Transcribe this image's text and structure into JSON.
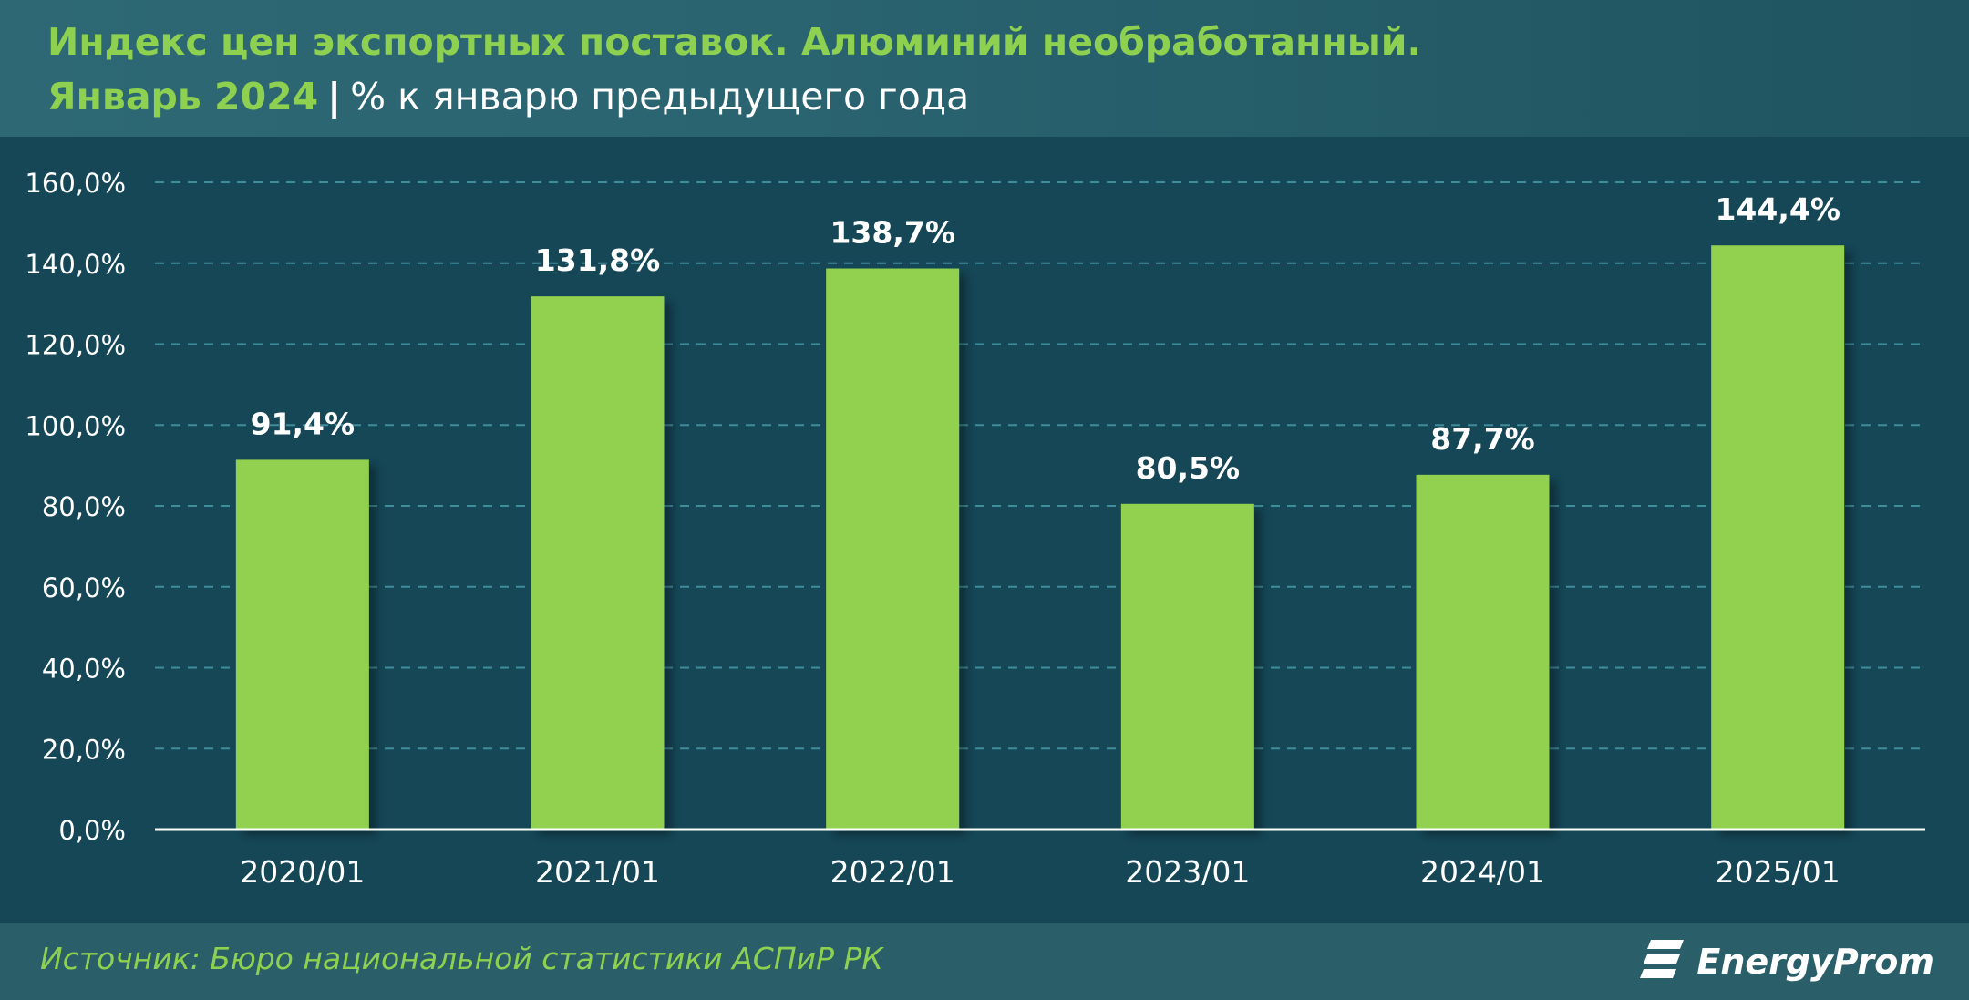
{
  "header": {
    "title_line1": "Индекс цен экспортных поставок. Алюминий необработанный.",
    "period": "Январь 2024",
    "separator": "|",
    "unit_note": "% к январю предыдущего года"
  },
  "footer": {
    "source": "Источник: Бюро национальной статистики АСПиР РК",
    "logo_text": "EnergyProm"
  },
  "colors": {
    "background": "#164a5a",
    "bar": "#92d050",
    "accent_text": "#8ed150",
    "gridline": "#3f8c9a",
    "axis_text": "#ffffff"
  },
  "chart_data": {
    "type": "bar",
    "categories": [
      "2020/01",
      "2021/01",
      "2022/01",
      "2023/01",
      "2024/01",
      "2025/01"
    ],
    "values": [
      91.4,
      131.8,
      138.7,
      80.5,
      87.7,
      144.4
    ],
    "data_labels": [
      "91,4%",
      "131,8%",
      "138,7%",
      "80,5%",
      "87,7%",
      "144,4%"
    ],
    "y_ticks": [
      "0,0%",
      "20,0%",
      "40,0%",
      "60,0%",
      "80,0%",
      "100,0%",
      "120,0%",
      "140,0%",
      "160,0%"
    ],
    "ylim": [
      0,
      160
    ],
    "y_step": 20,
    "grid": true,
    "grid_style": "dashed",
    "legend": "none"
  }
}
